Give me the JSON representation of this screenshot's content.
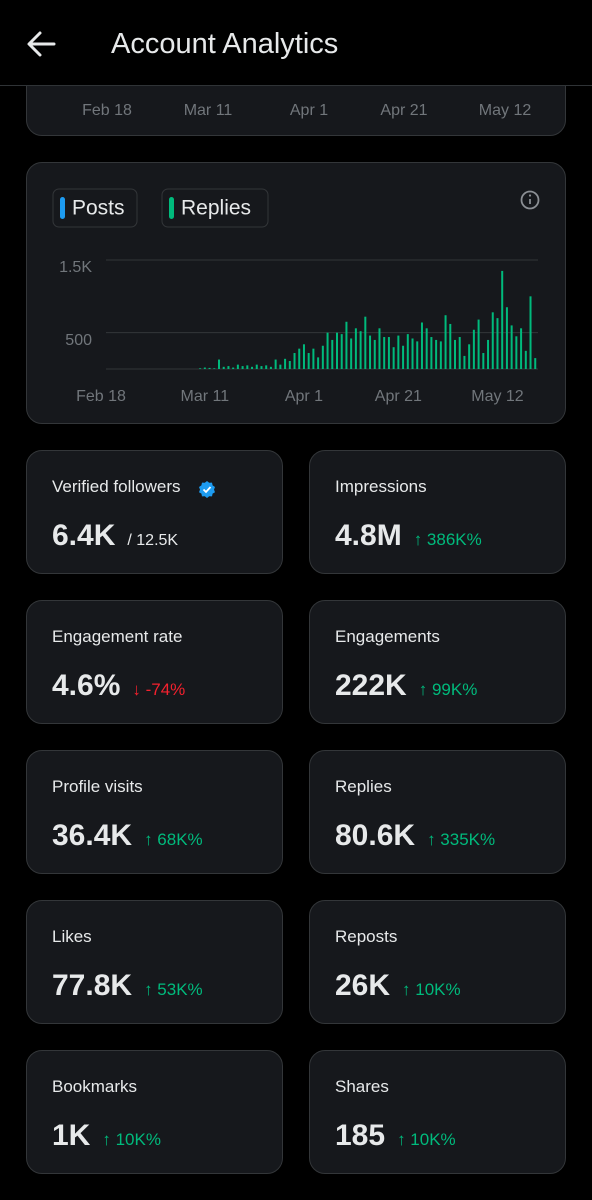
{
  "header": {
    "title": "Account Analytics"
  },
  "previous_chart": {
    "x_labels": [
      "Feb 18",
      "Mar 11",
      "Apr 1",
      "Apr 21",
      "May 12"
    ]
  },
  "chart_data": {
    "type": "bar",
    "stacked": true,
    "grid": true,
    "categories": [
      "Feb 18",
      null,
      null,
      null,
      null,
      null,
      null,
      null,
      null,
      null,
      null,
      null,
      null,
      null,
      null,
      null,
      null,
      null,
      null,
      null,
      null,
      null,
      "Mar 11",
      null,
      null,
      null,
      null,
      null,
      null,
      null,
      null,
      null,
      null,
      null,
      null,
      null,
      null,
      null,
      null,
      null,
      null,
      null,
      null,
      "Apr 1",
      null,
      null,
      null,
      null,
      null,
      null,
      null,
      null,
      null,
      null,
      null,
      null,
      null,
      null,
      null,
      null,
      null,
      null,
      null,
      "Apr 21",
      null,
      null,
      null,
      null,
      null,
      null,
      null,
      null,
      null,
      null,
      null,
      null,
      null,
      null,
      null,
      null,
      null,
      null,
      null,
      null,
      "May 12",
      null,
      null,
      null,
      null,
      null,
      null,
      null,
      null
    ],
    "series": [
      {
        "name": "Posts",
        "color": "#1d9bf0",
        "values": [
          0,
          0,
          0,
          0,
          0,
          0,
          0,
          0,
          0,
          0,
          0,
          0,
          0,
          0,
          0,
          0,
          0,
          0,
          0,
          0,
          0,
          0,
          0,
          0,
          0,
          0,
          0,
          0,
          0,
          0,
          0,
          0,
          0,
          0,
          0,
          0,
          0,
          0,
          0,
          0,
          0,
          0,
          0,
          0,
          0,
          0,
          0,
          0,
          0,
          0,
          0,
          0,
          0,
          0,
          0,
          0,
          0,
          0,
          0,
          0,
          0,
          0,
          0,
          0,
          0,
          0,
          0,
          0,
          0,
          0,
          0,
          0,
          0,
          0,
          0,
          0,
          0,
          0,
          0,
          0,
          0,
          0,
          0,
          0,
          0,
          0,
          0,
          0,
          0,
          0,
          0,
          0,
          0
        ]
      },
      {
        "name": "Replies",
        "color": "#00ba7c",
        "values": [
          0,
          0,
          0,
          0,
          0,
          0,
          0,
          0,
          0,
          0,
          0,
          0,
          0,
          0,
          0,
          0,
          0,
          0,
          0,
          0,
          0,
          10,
          20,
          15,
          10,
          130,
          30,
          40,
          20,
          60,
          40,
          50,
          30,
          60,
          40,
          50,
          30,
          130,
          60,
          140,
          110,
          220,
          280,
          340,
          220,
          280,
          160,
          320,
          500,
          400,
          500,
          480,
          650,
          420,
          560,
          520,
          720,
          460,
          400,
          560,
          440,
          440,
          300,
          460,
          320,
          480,
          420,
          380,
          640,
          560,
          440,
          400,
          380,
          740,
          620,
          400,
          440,
          180,
          340,
          540,
          680,
          220,
          400,
          780,
          700,
          1350,
          850,
          600,
          450,
          560,
          250,
          1000,
          150
        ]
      }
    ],
    "ylim": [
      0,
      1500
    ],
    "yticks": [
      {
        "value": 1500,
        "label": "1.5K"
      },
      500
    ]
  },
  "metrics": [
    {
      "label": "Verified followers",
      "value": "6.4K",
      "total": "/ 12.5K"
    },
    {
      "label": "Impressions",
      "value": "4.8M",
      "change": "↑ 386K%",
      "change_color": "#00ba7c"
    },
    {
      "label": "Engagement rate",
      "value": "4.6%",
      "change": "↓ -74%",
      "change_color": "#f4212e"
    },
    {
      "label": "Engagements",
      "value": "222K",
      "change": "↑ 99K%",
      "change_color": "#00ba7c"
    },
    {
      "label": "Profile visits",
      "value": "36.4K",
      "change": "↑ 68K%",
      "change_color": "#00ba7c"
    },
    {
      "label": "Replies",
      "value": "80.6K",
      "change": "↑ 335K%",
      "change_color": "#00ba7c"
    },
    {
      "label": "Likes",
      "value": "77.8K",
      "change": "↑ 53K%",
      "change_color": "#00ba7c"
    },
    {
      "label": "Reposts",
      "value": "26K",
      "change": "↑ 10K%",
      "change_color": "#00ba7c"
    },
    {
      "label": "Bookmarks",
      "value": "1K",
      "change": "↑ 10K%",
      "change_color": "#00ba7c"
    },
    {
      "label": "Shares",
      "value": "185",
      "change": "↑ 10K%",
      "change_color": "#00ba7c"
    }
  ]
}
